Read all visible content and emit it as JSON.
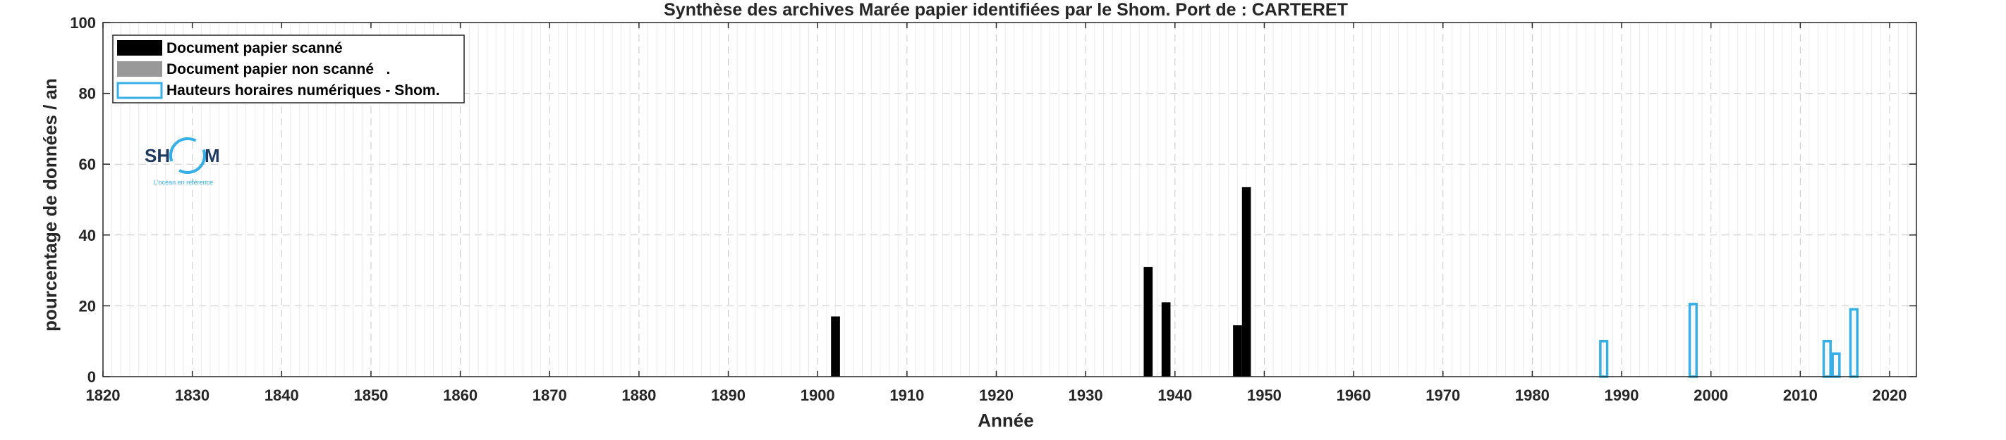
{
  "chart_data": {
    "type": "bar",
    "title": "Synthèse des archives Marée papier identifiées par le Shom. Port de : CARTERET",
    "xlabel": "Année",
    "ylabel": "pourcentage de données / an",
    "xlim": [
      1820,
      2023
    ],
    "ylim": [
      0,
      100
    ],
    "xticks": [
      1820,
      1830,
      1840,
      1850,
      1860,
      1870,
      1880,
      1890,
      1900,
      1910,
      1920,
      1930,
      1940,
      1950,
      1960,
      1970,
      1980,
      1990,
      2000,
      2010,
      2020
    ],
    "yticks": [
      0,
      20,
      40,
      60,
      80,
      100
    ],
    "grid": true,
    "legend_position": "top-left",
    "series": [
      {
        "name": "Document papier scanné",
        "color": "#000000",
        "style": "filled",
        "x": [
          1902,
          1937,
          1939,
          1947,
          1948
        ],
        "values": [
          17,
          31,
          21,
          14.5,
          53.5
        ]
      },
      {
        "name": "Document papier non scanné   .",
        "color": "#999999",
        "style": "filled",
        "x": [],
        "values": []
      },
      {
        "name": "Hauteurs horaires numériques - Shom.",
        "color": "#36aee6",
        "style": "outline",
        "x": [
          1988,
          1998,
          2013,
          2014,
          2016
        ],
        "values": [
          10,
          20.5,
          10,
          6.5,
          19
        ]
      }
    ]
  },
  "logo": {
    "left": "SH",
    "right": "M",
    "tagline": "L'océan en référence",
    "ring_color": "#36aee6"
  }
}
